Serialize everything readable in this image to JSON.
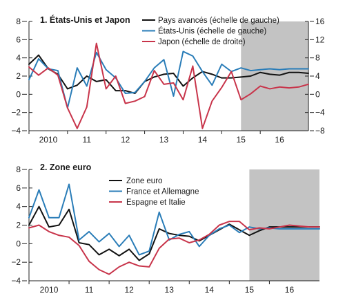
{
  "colors": {
    "black": "#111111",
    "blue": "#2a7db8",
    "red": "#c8344a",
    "shade": "#c3c3c3"
  },
  "chart_data": [
    {
      "type": "line",
      "title": "1. États-Unis et Japon",
      "x_tick_labels": [
        "2010",
        "11",
        "12",
        "13",
        "14",
        "15",
        "16"
      ],
      "x_start": 2009.5,
      "x_end": 2016.75,
      "forecast_from": 2015.0,
      "left_axis": {
        "ylim": [
          -4,
          8
        ],
        "ticks": [
          -4,
          -2,
          0,
          2,
          4,
          6,
          8
        ]
      },
      "right_axis": {
        "ylim": [
          -8,
          16
        ],
        "ticks": [
          -8,
          -4,
          0,
          4,
          8,
          12,
          16
        ]
      },
      "legend_position": "top-right",
      "grid": false,
      "series": [
        {
          "name": "Pays avancés (échelle de gauche)",
          "color_key": "black",
          "axis": "left",
          "x": [
            2009.5,
            2009.75,
            2010.0,
            2010.25,
            2010.5,
            2010.75,
            2011.0,
            2011.25,
            2011.5,
            2011.75,
            2012.0,
            2012.25,
            2012.5,
            2012.75,
            2013.0,
            2013.25,
            2013.5,
            2013.75,
            2014.0,
            2014.25,
            2014.5,
            2014.75,
            2015.0,
            2015.25,
            2015.5,
            2015.75,
            2016.0,
            2016.25,
            2016.5,
            2016.75
          ],
          "values": [
            3.3,
            4.3,
            2.8,
            2.2,
            0.6,
            1.0,
            2.0,
            1.4,
            1.6,
            0.4,
            0.4,
            0.1,
            1.4,
            1.9,
            2.2,
            2.3,
            0.9,
            1.8,
            2.5,
            2.2,
            1.8,
            1.8,
            1.9,
            2.0,
            2.4,
            2.2,
            2.1,
            2.4,
            2.4,
            2.3
          ]
        },
        {
          "name": "États-Unis (échelle de gauche)",
          "color_key": "blue",
          "axis": "left",
          "x": [
            2009.5,
            2009.75,
            2010.0,
            2010.25,
            2010.5,
            2010.75,
            2011.0,
            2011.25,
            2011.5,
            2011.75,
            2012.0,
            2012.25,
            2012.5,
            2012.75,
            2013.0,
            2013.25,
            2013.5,
            2013.75,
            2014.0,
            2014.25,
            2014.5,
            2014.75,
            2015.0,
            2015.25,
            2015.5,
            2015.75,
            2016.0,
            2016.25,
            2016.5,
            2016.75
          ],
          "values": [
            1.6,
            3.9,
            2.8,
            2.6,
            -1.5,
            2.9,
            0.9,
            4.6,
            2.7,
            1.8,
            0.1,
            0.2,
            1.4,
            2.9,
            3.8,
            -0.2,
            4.7,
            4.2,
            2.5,
            1.0,
            3.3,
            2.5,
            2.9,
            2.6,
            2.7,
            2.8,
            2.7,
            2.8,
            2.8,
            2.8
          ]
        },
        {
          "name": "Japon (échelle de droite)",
          "color_key": "red",
          "axis": "right",
          "x": [
            2009.5,
            2009.75,
            2010.0,
            2010.25,
            2010.5,
            2010.75,
            2011.0,
            2011.25,
            2011.5,
            2011.75,
            2012.0,
            2012.25,
            2012.5,
            2012.75,
            2013.0,
            2013.25,
            2013.5,
            2013.75,
            2014.0,
            2014.25,
            2014.5,
            2014.75,
            2015.0,
            2015.25,
            2015.5,
            2015.75,
            2016.0,
            2016.25,
            2016.5,
            2016.75
          ],
          "values": [
            6.0,
            4.2,
            5.8,
            4.2,
            -3.0,
            -7.5,
            -2.8,
            11.2,
            1.2,
            4.0,
            -2.0,
            -1.5,
            -0.5,
            5.2,
            2.2,
            2.5,
            -1.2,
            6.2,
            -7.5,
            -1.5,
            1.5,
            5.0,
            -1.2,
            0.1,
            1.8,
            1.2,
            1.6,
            1.4,
            1.6,
            2.2
          ]
        }
      ]
    },
    {
      "type": "line",
      "title": "2. Zone euro",
      "x_tick_labels": [
        "2010",
        "11",
        "12",
        "13",
        "14",
        "15",
        "16"
      ],
      "x_start": 2009.5,
      "x_end": 2016.75,
      "forecast_from": 2015.0,
      "left_axis": {
        "ylim": [
          -4,
          8
        ],
        "ticks": [
          -4,
          -2,
          0,
          2,
          4,
          6,
          8
        ]
      },
      "legend_position": "top-center",
      "grid": false,
      "series": [
        {
          "name": "Zone euro",
          "color_key": "black",
          "axis": "left",
          "x": [
            2009.5,
            2009.75,
            2010.0,
            2010.25,
            2010.5,
            2010.75,
            2011.0,
            2011.25,
            2011.5,
            2011.75,
            2012.0,
            2012.25,
            2012.5,
            2012.75,
            2013.0,
            2013.25,
            2013.5,
            2013.75,
            2014.0,
            2014.25,
            2014.5,
            2014.75,
            2015.0,
            2015.25,
            2015.5,
            2015.75,
            2016.0,
            2016.25,
            2016.5,
            2016.75
          ],
          "values": [
            2.0,
            4.0,
            1.8,
            2.0,
            3.7,
            0.1,
            -0.1,
            -1.2,
            -0.6,
            -1.3,
            -0.6,
            -1.8,
            -1.1,
            1.6,
            1.1,
            0.9,
            0.8,
            0.3,
            0.9,
            1.5,
            2.1,
            1.5,
            0.9,
            1.4,
            1.8,
            1.8,
            1.8,
            1.8,
            1.8,
            1.8
          ]
        },
        {
          "name": "France et Allemagne",
          "color_key": "blue",
          "axis": "left",
          "x": [
            2009.5,
            2009.75,
            2010.0,
            2010.25,
            2010.5,
            2010.75,
            2011.0,
            2011.25,
            2011.5,
            2011.75,
            2012.0,
            2012.25,
            2012.5,
            2012.75,
            2013.0,
            2013.25,
            2013.5,
            2013.75,
            2014.0,
            2014.25,
            2014.5,
            2014.75,
            2015.0,
            2015.25,
            2015.5,
            2015.75,
            2016.0,
            2016.25,
            2016.5,
            2016.75
          ],
          "values": [
            2.8,
            5.8,
            2.8,
            2.8,
            6.4,
            0.4,
            1.3,
            0.2,
            1.1,
            -0.3,
            0.9,
            -1.2,
            -0.8,
            3.4,
            0.4,
            1.0,
            1.3,
            -0.3,
            0.9,
            1.6,
            2.0,
            1.2,
            1.8,
            1.6,
            1.7,
            1.6,
            1.6,
            1.6,
            1.6,
            1.6
          ]
        },
        {
          "name": "Espagne et Italie",
          "color_key": "red",
          "axis": "left",
          "x": [
            2009.5,
            2009.75,
            2010.0,
            2010.25,
            2010.5,
            2010.75,
            2011.0,
            2011.25,
            2011.5,
            2011.75,
            2012.0,
            2012.25,
            2012.5,
            2012.75,
            2013.0,
            2013.25,
            2013.5,
            2013.75,
            2014.0,
            2014.25,
            2014.5,
            2014.75,
            2015.0,
            2015.25,
            2015.5,
            2015.75,
            2016.0,
            2016.25,
            2016.5,
            2016.75
          ],
          "values": [
            1.7,
            2.0,
            1.3,
            0.9,
            0.7,
            -0.2,
            -1.9,
            -2.8,
            -3.3,
            -2.5,
            -2.0,
            -2.4,
            -2.5,
            -0.5,
            0.5,
            0.6,
            0.1,
            0.4,
            1.0,
            2.0,
            2.4,
            2.4,
            1.5,
            1.7,
            1.6,
            1.8,
            2.0,
            1.9,
            1.8,
            1.8
          ]
        }
      ]
    }
  ]
}
